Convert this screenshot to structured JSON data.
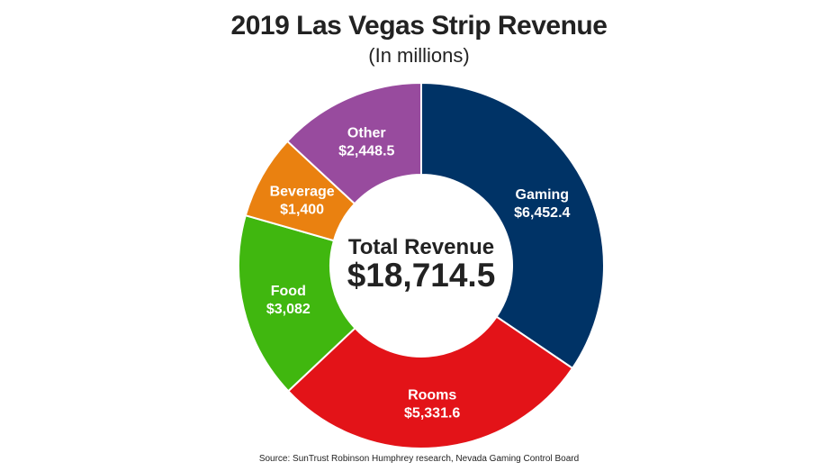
{
  "chart_data": {
    "type": "pie",
    "title": "2019 Las Vegas Strip Revenue",
    "subtitle": "(In millions)",
    "center_label": "Total Revenue",
    "center_value": "$18,714.5",
    "categories": [
      "Gaming",
      "Rooms",
      "Food",
      "Beverage",
      "Other"
    ],
    "values": [
      6452.4,
      5331.6,
      3082,
      1400,
      2448.5
    ],
    "value_labels": [
      "$6,452.4",
      "$5,331.6",
      "$3,082",
      "$1,400",
      "$2,448.5"
    ],
    "colors": [
      "#003366",
      "#e31318",
      "#40b70f",
      "#ea8110",
      "#984b9e"
    ],
    "legend": "none",
    "donut": true
  },
  "source": "Source: SunTrust Robinson Humphrey research, Nevada Gaming Control Board"
}
